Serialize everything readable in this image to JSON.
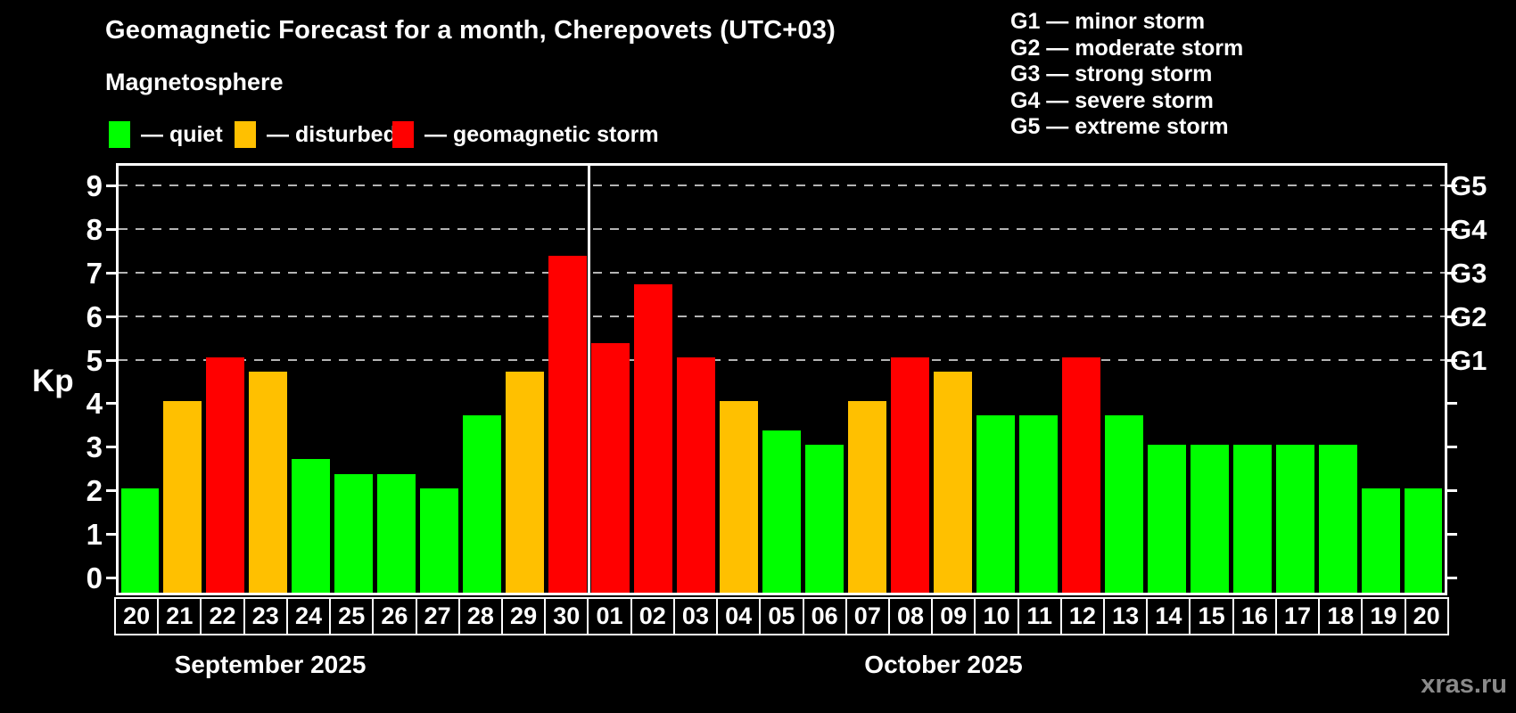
{
  "header": {
    "title": "Geomagnetic Forecast for a month, Cherepovets (UTC+03)",
    "subtitle": "Magnetosphere"
  },
  "activity_legend": [
    {
      "key": "quiet",
      "label": "— quiet",
      "color": "#00ff00"
    },
    {
      "key": "disturbed",
      "label": "— disturbed",
      "color": "#ffc000"
    },
    {
      "key": "storm",
      "label": "— geomagnetic storm",
      "color": "#ff0000"
    }
  ],
  "storm_scale_legend": [
    "G1 — minor storm",
    "G2 — moderate storm",
    "G3 — strong storm",
    "G4 — severe storm",
    "G5 — extreme storm"
  ],
  "watermark": "xras.ru",
  "colors": {
    "background": "#000000",
    "text": "#ffffff",
    "quiet": "#00ff00",
    "disturbed": "#ffc000",
    "storm": "#ff0000",
    "grid": "#b4b4b4",
    "watermark": "#8a8a8a"
  },
  "chart_data": {
    "type": "bar",
    "title": "Geomagnetic Forecast for a month, Cherepovets (UTC+03)",
    "ylabel": "Kp",
    "ylim": [
      -0.45,
      9.45
    ],
    "y_ticks": [
      0,
      1,
      2,
      3,
      4,
      5,
      6,
      7,
      8,
      9
    ],
    "gridlines_at": [
      5,
      6,
      7,
      8,
      9
    ],
    "grid_style": "dashed horizontal, only at G-storm levels",
    "right_axis_labels": [
      {
        "label": "G1",
        "kp": 5
      },
      {
        "label": "G2",
        "kp": 6
      },
      {
        "label": "G3",
        "kp": 7
      },
      {
        "label": "G4",
        "kp": 8
      },
      {
        "label": "G5",
        "kp": 9
      }
    ],
    "months": [
      {
        "label": "September 2025",
        "days": 11
      },
      {
        "label": "October 2025",
        "days": 20
      }
    ],
    "categories": [
      "20",
      "21",
      "22",
      "23",
      "24",
      "25",
      "26",
      "27",
      "28",
      "29",
      "30",
      "01",
      "02",
      "03",
      "04",
      "05",
      "06",
      "07",
      "08",
      "09",
      "10",
      "11",
      "12",
      "13",
      "14",
      "15",
      "16",
      "17",
      "18",
      "19",
      "20"
    ],
    "values": [
      2,
      4,
      5,
      4.67,
      2.67,
      2.33,
      2.33,
      2,
      3.67,
      4.67,
      7.33,
      5.33,
      6.67,
      5,
      4,
      3.33,
      3,
      4,
      5,
      4.67,
      3.67,
      3.67,
      5,
      3.67,
      3,
      3,
      3,
      3,
      3,
      2,
      2
    ],
    "statuses": [
      "quiet",
      "disturbed",
      "storm",
      "disturbed",
      "quiet",
      "quiet",
      "quiet",
      "quiet",
      "quiet",
      "disturbed",
      "storm",
      "storm",
      "storm",
      "storm",
      "disturbed",
      "quiet",
      "quiet",
      "disturbed",
      "storm",
      "disturbed",
      "quiet",
      "quiet",
      "storm",
      "quiet",
      "quiet",
      "quiet",
      "quiet",
      "quiet",
      "quiet",
      "quiet",
      "quiet"
    ]
  }
}
